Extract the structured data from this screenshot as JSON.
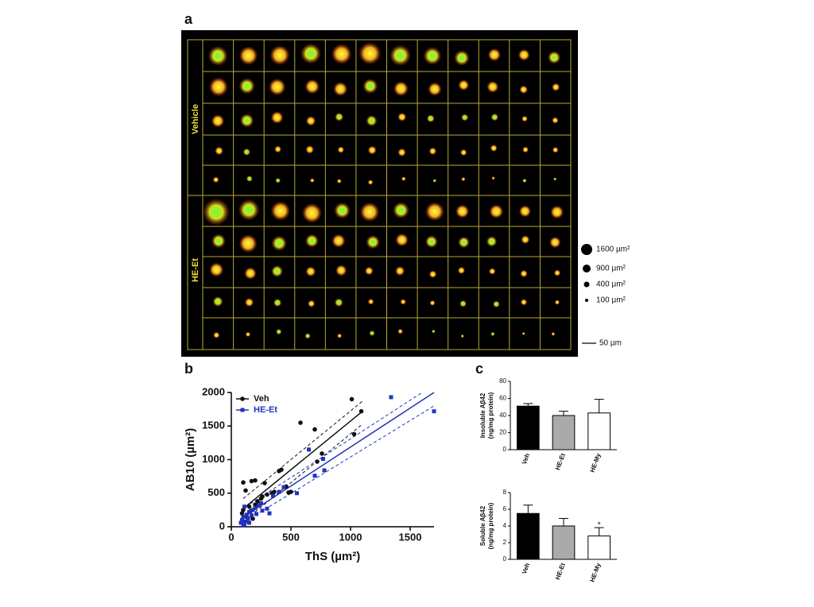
{
  "panel_labels": [
    "a",
    "b",
    "c"
  ],
  "figure_a": {
    "row_labels": [
      "Vehicle",
      "HE-Et"
    ],
    "size_legend": [
      "1600 µm²",
      "900 µm²",
      "400 µm²",
      "100 µm²"
    ],
    "scale_bar": "50 µm"
  },
  "chart_data": [
    {
      "type": "scatter",
      "xlabel": "ThS (µm²)",
      "ylabel": "AB10 (µm²)",
      "xlim": [
        0,
        1700
      ],
      "xticks": [
        0,
        500,
        1000,
        1500
      ],
      "ylim": [
        0,
        2000
      ],
      "yticks": [
        0,
        500,
        1000,
        1500,
        2000
      ],
      "legend": "upper left",
      "series": [
        {
          "name": "Veh",
          "color": "#111111",
          "marker": "circle",
          "x": [
            1010,
            1090,
            1030,
            760,
            700,
            580,
            720,
            420,
            400,
            280,
            170,
            200,
            100,
            120,
            460,
            480,
            300,
            250,
            200,
            150,
            100,
            90,
            130,
            180,
            220,
            260,
            340,
            360,
            500,
            160
          ],
          "y": [
            1900,
            1720,
            1380,
            1090,
            1450,
            1550,
            970,
            850,
            830,
            650,
            680,
            690,
            660,
            540,
            600,
            510,
            480,
            420,
            330,
            300,
            250,
            200,
            150,
            120,
            380,
            450,
            500,
            520,
            520,
            230
          ],
          "fit": {
            "x": [
              100,
              1100
            ],
            "y": [
              270,
              1720
            ]
          },
          "ci_upper": {
            "x": [
              100,
              1100
            ],
            "y": [
              420,
              1870
            ]
          },
          "ci_lower": {
            "x": [
              200,
              1100
            ],
            "y": [
              220,
              1530
            ]
          }
        },
        {
          "name": "HE-Et",
          "color": "#2233bb",
          "marker": "square",
          "x": [
            1700,
            1340,
            650,
            770,
            700,
            780,
            440,
            400,
            350,
            320,
            250,
            230,
            200,
            180,
            150,
            130,
            110,
            100,
            90,
            80,
            120,
            140,
            170,
            210,
            260,
            110,
            100,
            150,
            300,
            550
          ],
          "y": [
            1720,
            1930,
            1150,
            1010,
            760,
            840,
            590,
            520,
            460,
            200,
            350,
            320,
            280,
            250,
            220,
            180,
            300,
            150,
            100,
            60,
            80,
            120,
            170,
            190,
            240,
            40,
            20,
            60,
            270,
            500
          ],
          "fit": {
            "x": [
              80,
              1700
            ],
            "y": [
              120,
              2000
            ]
          },
          "ci_upper": {
            "x": [
              80,
              1600
            ],
            "y": [
              250,
              2000
            ]
          },
          "ci_lower": {
            "x": [
              80,
              1700
            ],
            "y": [
              40,
              1800
            ]
          }
        }
      ]
    },
    {
      "type": "bar",
      "ylabel": [
        "Insoluble Aβ42",
        "(ng/mg protein)"
      ],
      "categories": [
        "Veh",
        "HE-Et",
        "HE-My"
      ],
      "values": [
        51,
        40,
        43
      ],
      "errors": [
        3,
        5,
        16
      ],
      "colors": [
        "#000000",
        "#aaaaaa",
        "#ffffff"
      ],
      "ylim": [
        0,
        80
      ],
      "yticks": [
        0,
        20,
        40,
        60,
        80
      ]
    },
    {
      "type": "bar",
      "ylabel": [
        "Soluble Aβ42",
        "(ng/mg protein)"
      ],
      "categories": [
        "Veh",
        "HE-Et",
        "HE-My"
      ],
      "values": [
        5.5,
        4,
        2.8
      ],
      "errors": [
        1,
        0.9,
        1
      ],
      "colors": [
        "#000000",
        "#aaaaaa",
        "#ffffff"
      ],
      "ylim": [
        0,
        8
      ],
      "yticks": [
        0,
        2,
        4,
        6,
        8
      ],
      "annotation": "*"
    }
  ]
}
